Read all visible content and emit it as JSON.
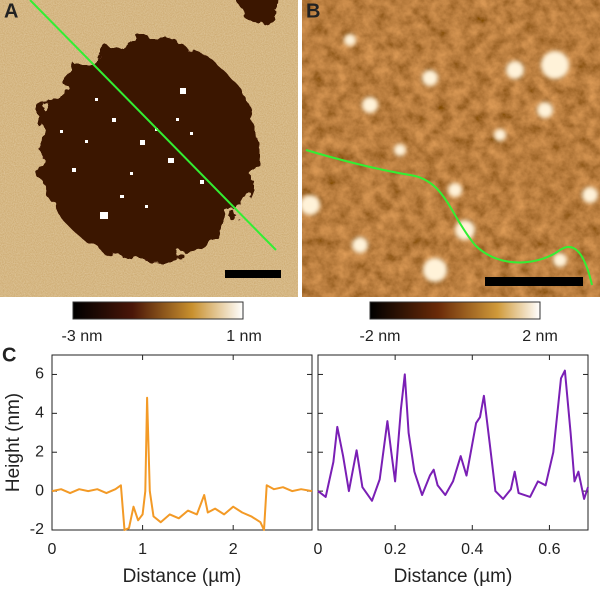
{
  "panel_labels": {
    "a": "A",
    "b": "B",
    "c": "C"
  },
  "colorbars": [
    {
      "min_label": "-3 nm",
      "max_label": "1 nm"
    },
    {
      "min_label": "-2 nm",
      "max_label": "2 nm"
    }
  ],
  "chart_data": [
    {
      "type": "line",
      "x_label": "Distance (µm)",
      "y_label": "Height (nm)",
      "xlim": [
        0,
        2.87
      ],
      "xticks": [
        0,
        1,
        2
      ],
      "ylim": [
        -2,
        7
      ],
      "yticks": [
        -2,
        0,
        2,
        4,
        6
      ],
      "show_ytick_labels": true,
      "series": [
        {
          "color": "#f39a26",
          "x": [
            0,
            0.1,
            0.2,
            0.3,
            0.4,
            0.5,
            0.6,
            0.7,
            0.76,
            0.8,
            0.85,
            0.9,
            0.95,
            1.0,
            1.03,
            1.05,
            1.08,
            1.12,
            1.2,
            1.3,
            1.4,
            1.5,
            1.6,
            1.68,
            1.72,
            1.8,
            1.9,
            2.0,
            2.1,
            2.2,
            2.3,
            2.34,
            2.37,
            2.45,
            2.55,
            2.65,
            2.75,
            2.87
          ],
          "values": [
            0,
            0.1,
            -0.1,
            0.1,
            0,
            0.1,
            -0.1,
            0.1,
            0.3,
            -2,
            -1.9,
            -0.8,
            -1.5,
            -1.2,
            0,
            4.8,
            0,
            -1.3,
            -1.6,
            -1.2,
            -1.4,
            -1.0,
            -1.2,
            -0.2,
            -1.1,
            -0.9,
            -1.2,
            -0.8,
            -1.1,
            -1.3,
            -1.6,
            -2,
            0.3,
            0.1,
            0.2,
            0,
            0.1,
            0
          ]
        }
      ]
    },
    {
      "type": "line",
      "x_label": "Distance (µm)",
      "xlim": [
        0,
        0.7
      ],
      "xticks": [
        0,
        0.2,
        0.4,
        0.6
      ],
      "ylim": [
        -2,
        7
      ],
      "yticks": [
        -2,
        0,
        2,
        4,
        6
      ],
      "show_ytick_labels": false,
      "series": [
        {
          "color": "#7a1fb5",
          "x": [
            0,
            0.02,
            0.04,
            0.05,
            0.065,
            0.08,
            0.1,
            0.115,
            0.14,
            0.16,
            0.18,
            0.19,
            0.2,
            0.215,
            0.225,
            0.235,
            0.25,
            0.27,
            0.29,
            0.3,
            0.31,
            0.33,
            0.35,
            0.37,
            0.385,
            0.41,
            0.42,
            0.43,
            0.445,
            0.46,
            0.48,
            0.5,
            0.51,
            0.52,
            0.55,
            0.57,
            0.59,
            0.61,
            0.63,
            0.64,
            0.655,
            0.665,
            0.675,
            0.69,
            0.7
          ],
          "values": [
            0,
            -0.3,
            1.5,
            3.3,
            1.8,
            0,
            2.1,
            0.2,
            -0.5,
            0.6,
            3.6,
            2.0,
            0.5,
            4.2,
            6.0,
            3,
            1.0,
            -0.2,
            0.8,
            1.1,
            0.3,
            -0.2,
            0.5,
            1.8,
            0.8,
            3.5,
            3.8,
            4.9,
            2.5,
            0,
            -0.4,
            0.1,
            1.0,
            -0.1,
            -0.3,
            0.5,
            0.3,
            2.0,
            5.8,
            6.2,
            3,
            0.5,
            1.0,
            -0.4,
            0.2
          ]
        }
      ]
    }
  ]
}
